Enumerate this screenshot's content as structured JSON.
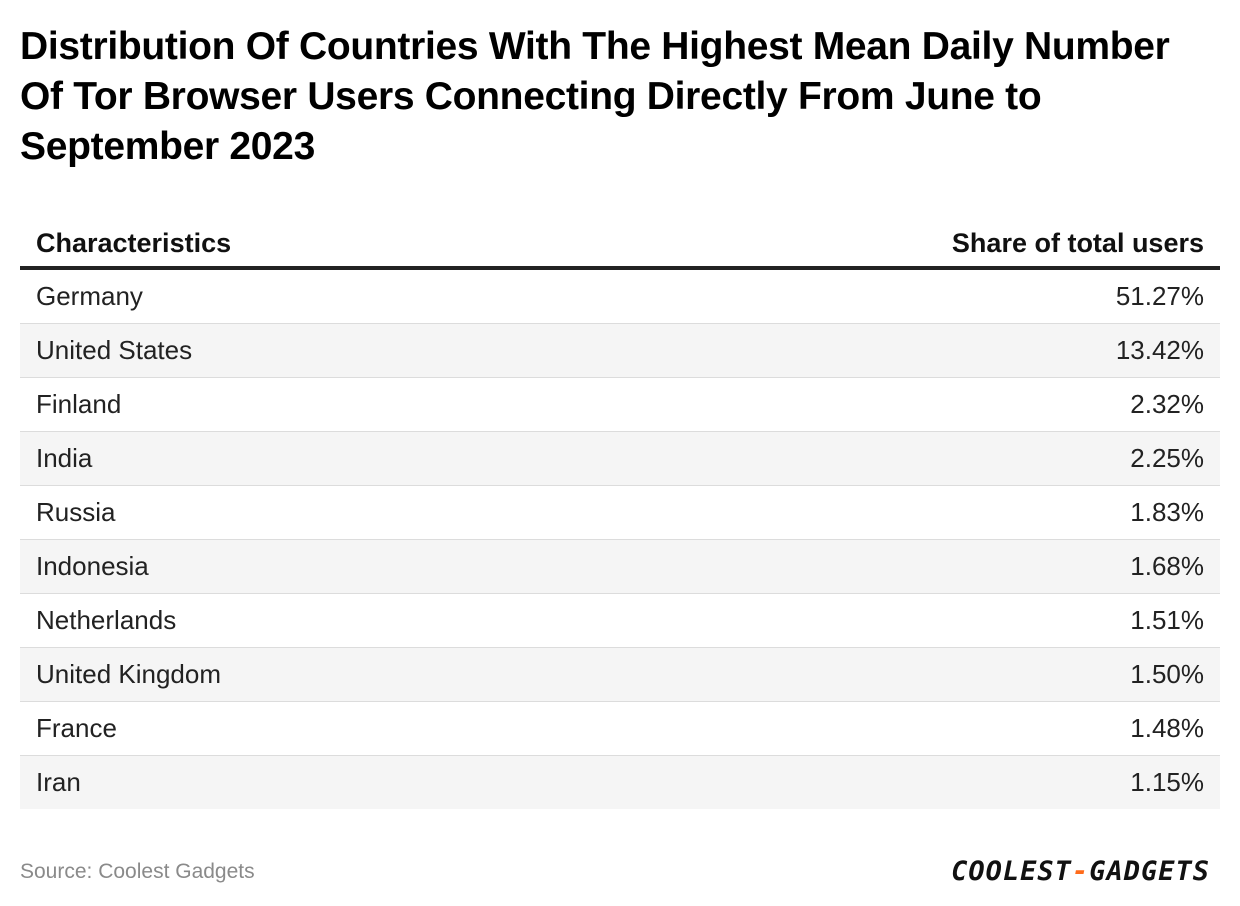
{
  "title": "Distribution Of Countries With The Highest Mean Daily Number Of Tor Browser Users Connecting Directly From June to September 2023",
  "chart_data": {
    "type": "table",
    "columns": [
      "Characteristics",
      "Share of total users"
    ],
    "rows": [
      {
        "country": "Germany",
        "share": "51.27%"
      },
      {
        "country": "United States",
        "share": "13.42%"
      },
      {
        "country": "Finland",
        "share": "2.32%"
      },
      {
        "country": "India",
        "share": "2.25%"
      },
      {
        "country": "Russia",
        "share": "1.83%"
      },
      {
        "country": "Indonesia",
        "share": "1.68%"
      },
      {
        "country": "Netherlands",
        "share": "1.51%"
      },
      {
        "country": "United Kingdom",
        "share": "1.50%"
      },
      {
        "country": "France",
        "share": "1.48%"
      },
      {
        "country": "Iran",
        "share": "1.15%"
      }
    ]
  },
  "source": "Source: Coolest Gadgets",
  "logo": {
    "left": "COOLEST",
    "dash": "-",
    "right": "GADGETS"
  },
  "colors": {
    "accent": "#ff6b1a",
    "header_rule": "#222222",
    "alt_row": "#f5f5f5"
  }
}
